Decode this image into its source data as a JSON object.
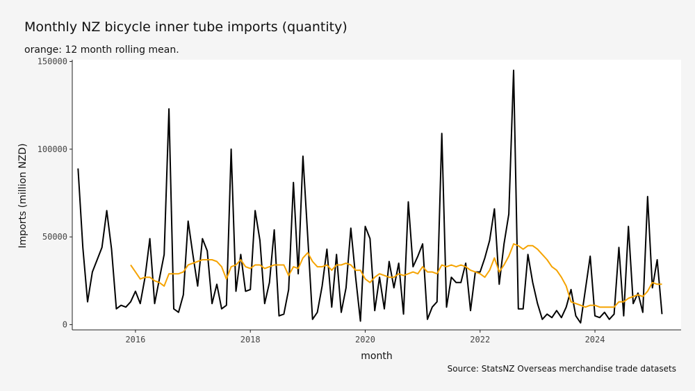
{
  "chart_data": {
    "type": "line",
    "title": "Monthly NZ bicycle inner tube imports (quantity)",
    "subtitle": "orange: 12 month rolling mean.",
    "xlabel": "month",
    "ylabel": "Imports (million NZD)",
    "caption": "Source: StatsNZ Overseas merchandise trade datasets",
    "xlim": [
      2014.9,
      2025.5
    ],
    "ylim": [
      -3000,
      151000
    ],
    "x_ticks": [
      2016,
      2018,
      2020,
      2022,
      2024
    ],
    "x_tick_labels": [
      "2016",
      "2018",
      "2020",
      "2022",
      "2024"
    ],
    "y_ticks": [
      0,
      50000,
      100000,
      150000
    ],
    "y_tick_labels": [
      "0",
      "50000",
      "100000",
      "150000"
    ],
    "grid": false,
    "background": "#ffffff",
    "x_start": "2015-01",
    "x_step": "1 month",
    "series": [
      {
        "color": "#000000",
        "values": [
          89000,
          44000,
          13000,
          30000,
          37000,
          44000,
          65000,
          43000,
          9000,
          11000,
          10000,
          13000,
          19000,
          12000,
          27000,
          49000,
          12000,
          26000,
          40000,
          123000,
          9000,
          7000,
          17000,
          59000,
          40000,
          22000,
          49000,
          42000,
          12000,
          23000,
          9000,
          11000,
          100000,
          19000,
          40000,
          19000,
          20000,
          65000,
          48000,
          12000,
          24000,
          54000,
          5000,
          6000,
          20000,
          81000,
          29000,
          96000,
          50000,
          3000,
          7000,
          22000,
          43000,
          10000,
          40000,
          7000,
          21000,
          55000,
          27000,
          2000,
          56000,
          49000,
          8000,
          27000,
          9000,
          36000,
          21000,
          35000,
          6000,
          70000,
          33000,
          39000,
          46000,
          3000,
          10000,
          13000,
          109000,
          10000,
          27000,
          24000,
          24000,
          35000,
          8000,
          30000,
          30000,
          38000,
          48000,
          66000,
          23000,
          46000,
          63000,
          145000,
          9000,
          9000,
          40000,
          24000,
          12000,
          3000,
          6000,
          4000,
          8000,
          4000,
          10000,
          20000,
          5000,
          1000,
          20000,
          39000,
          5000,
          4000,
          7000,
          3000,
          6000,
          44000,
          5000,
          56000,
          12000,
          18000,
          7000,
          73000,
          21000,
          37000,
          6000
        ]
      },
      {
        "color": "#f5a300",
        "values": [
          null,
          null,
          null,
          null,
          null,
          null,
          null,
          null,
          null,
          null,
          null,
          34000,
          30000,
          26000,
          27000,
          27000,
          25000,
          24000,
          22000,
          29000,
          29000,
          29000,
          30000,
          34000,
          35000,
          36000,
          37000,
          37000,
          37000,
          36000,
          33000,
          26000,
          33000,
          34000,
          37000,
          33000,
          32000,
          34000,
          34000,
          32000,
          33000,
          34000,
          34000,
          34000,
          28000,
          33000,
          32000,
          38000,
          41000,
          36000,
          33000,
          33000,
          34000,
          31000,
          34000,
          34000,
          35000,
          34000,
          31000,
          31000,
          26000,
          24000,
          27000,
          29000,
          28000,
          27000,
          27000,
          29000,
          28000,
          29000,
          30000,
          29000,
          33000,
          30000,
          30000,
          29000,
          34000,
          33000,
          34000,
          33000,
          34000,
          33000,
          31000,
          30000,
          29000,
          27000,
          31000,
          38000,
          30000,
          34000,
          39000,
          46000,
          45000,
          43000,
          45000,
          45000,
          43000,
          40000,
          37000,
          33000,
          31000,
          27000,
          22000,
          13000,
          12000,
          11000,
          10000,
          11000,
          11000,
          10000,
          10000,
          10000,
          10000,
          13000,
          13000,
          15000,
          16000,
          17000,
          16000,
          19000,
          24000,
          23000,
          23000
        ]
      }
    ]
  }
}
